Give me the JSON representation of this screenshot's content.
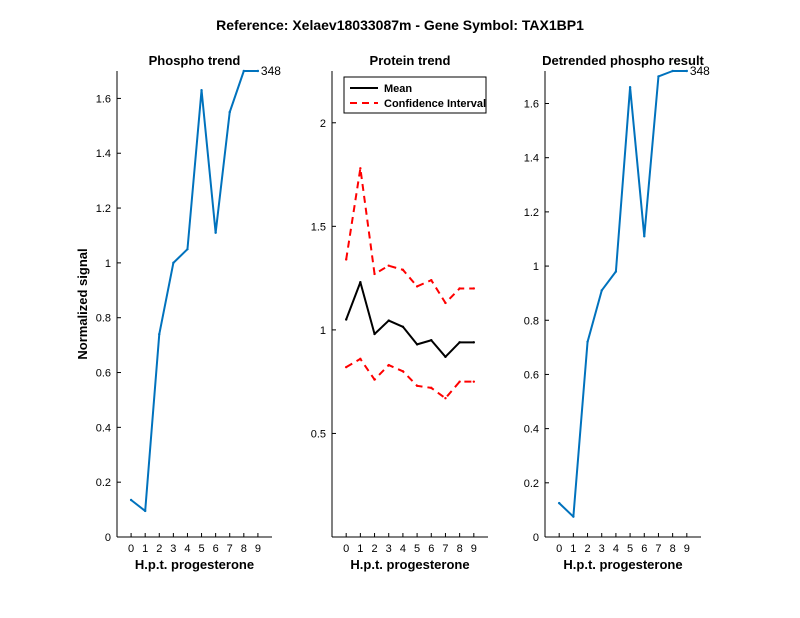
{
  "figure": {
    "title": "Reference:  Xelaev18033087m - Gene Symbol:  TAX1BP1"
  },
  "chart_data": [
    {
      "type": "line",
      "title": "Phospho trend",
      "xlabel": "H.p.t. progesterone",
      "ylabel": "Normalized signal",
      "xlim": [
        -1,
        10
      ],
      "ylim": [
        0,
        1.7
      ],
      "xticks": [
        0,
        1,
        2,
        3,
        4,
        5,
        6,
        7,
        8,
        9
      ],
      "yticks": [
        0,
        0.2,
        0.4,
        0.6,
        0.8,
        1,
        1.2,
        1.4,
        1.6
      ],
      "ytick_labels": [
        "0",
        "0.2",
        "0.4",
        "0.6",
        "0.8",
        "1",
        "1.2",
        "1.4",
        "1.6"
      ],
      "series": [
        {
          "color": "#0072BD",
          "x": [
            0,
            1,
            2,
            3,
            4,
            5,
            6,
            7,
            8,
            9
          ],
          "y": [
            0.135,
            0.095,
            0.74,
            1.0,
            1.05,
            1.63,
            1.11,
            1.55,
            1.7,
            1.7
          ],
          "end_label": "348"
        }
      ]
    },
    {
      "type": "line",
      "title": "Protein trend",
      "xlabel": "H.p.t. progesterone",
      "ylabel": "",
      "xlim": [
        -1,
        10
      ],
      "ylim": [
        0,
        2.25
      ],
      "xticks": [
        0,
        1,
        2,
        3,
        4,
        5,
        6,
        7,
        8,
        9
      ],
      "yticks": [
        0.5,
        1,
        1.5,
        2
      ],
      "ytick_labels": [
        "0.5",
        "1",
        "1.5",
        "2"
      ],
      "legend": {
        "position": "top-left",
        "entries": [
          "Mean",
          "Confidence Interval"
        ]
      },
      "series": [
        {
          "name": "Mean",
          "color": "#000000",
          "dash": "solid",
          "x": [
            0,
            1,
            2,
            3,
            4,
            5,
            6,
            7,
            8,
            9
          ],
          "y": [
            1.05,
            1.23,
            0.98,
            1.045,
            1.015,
            0.93,
            0.95,
            0.87,
            0.94,
            0.94
          ]
        },
        {
          "name": "Confidence Interval",
          "color": "#FF0000",
          "dash": "dashed",
          "x": [
            0,
            1,
            2,
            3,
            4,
            5,
            6,
            7,
            8,
            9
          ],
          "y": [
            1.34,
            1.78,
            1.27,
            1.31,
            1.29,
            1.21,
            1.24,
            1.13,
            1.2,
            1.2
          ]
        },
        {
          "name": "",
          "color": "#FF0000",
          "dash": "dashed",
          "x": [
            0,
            1,
            2,
            3,
            4,
            5,
            6,
            7,
            8,
            9
          ],
          "y": [
            0.82,
            0.86,
            0.76,
            0.83,
            0.8,
            0.73,
            0.72,
            0.67,
            0.75,
            0.75
          ]
        }
      ]
    },
    {
      "type": "line",
      "title": "Detrended phospho result",
      "xlabel": "H.p.t. progesterone",
      "ylabel": "",
      "xlim": [
        -1,
        10
      ],
      "ylim": [
        0,
        1.72
      ],
      "xticks": [
        0,
        1,
        2,
        3,
        4,
        5,
        6,
        7,
        8,
        9
      ],
      "yticks": [
        0,
        0.2,
        0.4,
        0.6,
        0.8,
        1,
        1.2,
        1.4,
        1.6
      ],
      "ytick_labels": [
        "0",
        "0.2",
        "0.4",
        "0.6",
        "0.8",
        "1",
        "1.2",
        "1.4",
        "1.6"
      ],
      "series": [
        {
          "color": "#0072BD",
          "x": [
            0,
            1,
            2,
            3,
            4,
            5,
            6,
            7,
            8,
            9
          ],
          "y": [
            0.125,
            0.075,
            0.72,
            0.91,
            0.98,
            1.66,
            1.11,
            1.7,
            1.72,
            1.72
          ],
          "end_label": "348"
        }
      ]
    }
  ]
}
